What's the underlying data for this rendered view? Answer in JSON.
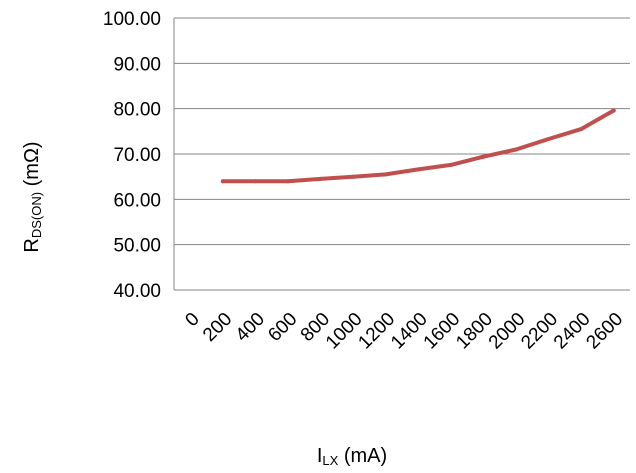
{
  "chart_data": {
    "type": "line",
    "title": "",
    "xlabel": {
      "main": "I",
      "sub": "LX",
      "unit": " (mA)"
    },
    "ylabel": {
      "main": "R",
      "sub": "DS(ON)",
      "unit": " (mΩ)"
    },
    "x_ticks": [
      "0",
      "200",
      "400",
      "600",
      "800",
      "1000",
      "1200",
      "1400",
      "1600",
      "1800",
      "2000",
      "2200",
      "2400",
      "2600"
    ],
    "y_ticks": [
      "40.00",
      "50.00",
      "60.00",
      "70.00",
      "80.00",
      "90.00",
      "100.00"
    ],
    "ylim": [
      40,
      100
    ],
    "grid": true,
    "series": [
      {
        "color": "#c0504d",
        "x": [
          200,
          400,
          600,
          800,
          1000,
          1200,
          1400,
          1600,
          1800,
          2000,
          2200,
          2400,
          2600
        ],
        "y": [
          64.0,
          64.0,
          64.0,
          64.5,
          65.0,
          65.5,
          66.6,
          67.6,
          69.4,
          71.0,
          73.3,
          75.5,
          79.6
        ]
      }
    ]
  }
}
